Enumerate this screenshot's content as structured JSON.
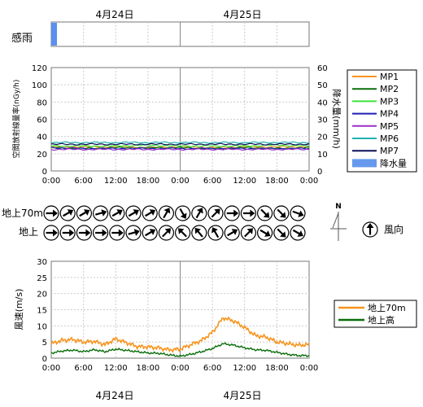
{
  "dates": [
    "4月24日",
    "4月25日"
  ],
  "time_ticks": [
    "0:00",
    "6:00",
    "12:00",
    "18:00",
    "0:00",
    "6:00",
    "12:00",
    "18:00",
    "0:00"
  ],
  "chart_data": [
    {
      "type": "bar",
      "title": "",
      "ylabel": "感雨",
      "note": "rain-sensor strip; a short rain detection at the very start of 4月24日",
      "x": [
        "4/24 0:00",
        "4/24 1:00"
      ],
      "values": [
        1,
        0
      ],
      "color": "#5b8ff0"
    },
    {
      "type": "line",
      "title": "",
      "ylabel": "空間放射線量率(nGy/h)",
      "y2label": "降水量(mm/h)",
      "ylim": [
        0,
        120
      ],
      "y2lim": [
        0,
        60
      ],
      "yticks": [
        "0",
        "20",
        "40",
        "60",
        "80",
        "100",
        "120"
      ],
      "y2ticks": [
        "0",
        "10",
        "20",
        "30",
        "40",
        "50",
        "60"
      ],
      "x_hours": [
        0,
        6,
        12,
        18,
        24,
        30,
        36,
        42,
        48
      ],
      "series": [
        {
          "name": "MP1",
          "color": "#f7941d",
          "values": [
            28,
            28,
            28,
            27,
            28,
            27,
            28,
            28,
            28
          ]
        },
        {
          "name": "MP2",
          "color": "#0a6e0a",
          "values": [
            27,
            26,
            27,
            27,
            27,
            26,
            27,
            26,
            27
          ]
        },
        {
          "name": "MP3",
          "color": "#3ce43c",
          "values": [
            29,
            29,
            29,
            30,
            29,
            29,
            29,
            30,
            29
          ]
        },
        {
          "name": "MP4",
          "color": "#1f1fb4",
          "values": [
            27,
            26,
            26,
            26,
            26,
            26,
            26,
            26,
            26
          ]
        },
        {
          "name": "MP5",
          "color": "#9b2fc8",
          "values": [
            25,
            25,
            25,
            25,
            25,
            25,
            25,
            25,
            25
          ]
        },
        {
          "name": "MP6",
          "color": "#20b2b2",
          "values": [
            33,
            33,
            33,
            33,
            33,
            33,
            33,
            33,
            33
          ]
        },
        {
          "name": "MP7",
          "color": "#0d0d5a",
          "values": [
            31,
            31,
            31,
            31,
            31,
            31,
            31,
            31,
            31
          ]
        }
      ],
      "bar_legend": {
        "name": "降水量",
        "color": "#6699ee"
      },
      "precipitation_values": [
        0,
        0,
        0,
        0,
        0,
        0,
        0,
        0,
        0
      ],
      "grid": true,
      "legend_position": "right"
    },
    {
      "type": "table",
      "title": "",
      "rows": [
        "地上70m",
        "地上"
      ],
      "note": "wind direction arrows every 3 hours; angle = direction the arrow points, degrees clockwise from up",
      "x_hours": [
        0,
        3,
        6,
        9,
        12,
        15,
        18,
        21,
        24,
        27,
        30,
        33,
        36,
        39,
        42,
        45
      ],
      "arrow_angles": {
        "upper": [
          90,
          60,
          60,
          75,
          60,
          60,
          60,
          30,
          150,
          30,
          45,
          90,
          90,
          135,
          135,
          110
        ],
        "ground": [
          90,
          90,
          90,
          90,
          90,
          75,
          60,
          45,
          315,
          320,
          330,
          60,
          45,
          120,
          135,
          120
        ]
      },
      "legend_label": "風向",
      "north_label": "N"
    },
    {
      "type": "line",
      "title": "",
      "ylabel": "風速(m/s)",
      "ylim": [
        0,
        30
      ],
      "yticks": [
        "0",
        "5",
        "10",
        "15",
        "20",
        "25",
        "30"
      ],
      "x_hours": [
        0,
        2,
        4,
        6,
        8,
        10,
        12,
        14,
        16,
        18,
        20,
        22,
        24,
        26,
        28,
        30,
        32,
        34,
        36,
        38,
        40,
        42,
        44,
        46,
        48
      ],
      "series": [
        {
          "name": "地上70m",
          "color": "#f7941d",
          "values": [
            4.5,
            5.5,
            5.8,
            5.0,
            5.2,
            4.2,
            6.0,
            4.8,
            3.6,
            3.5,
            3.2,
            2.6,
            2.8,
            4.2,
            5.5,
            8.0,
            12.5,
            11.5,
            9.5,
            7.0,
            6.5,
            5.0,
            4.5,
            4.0,
            4.2
          ]
        },
        {
          "name": "地上高",
          "color": "#0a6e0a",
          "values": [
            1.6,
            2.2,
            2.5,
            2.0,
            2.6,
            2.0,
            2.8,
            2.4,
            2.0,
            1.6,
            1.5,
            1.0,
            0.6,
            1.2,
            2.0,
            3.0,
            4.5,
            4.0,
            3.2,
            2.6,
            2.4,
            1.8,
            1.2,
            0.8,
            0.8
          ]
        }
      ],
      "grid": true,
      "legend_position": "right"
    }
  ]
}
